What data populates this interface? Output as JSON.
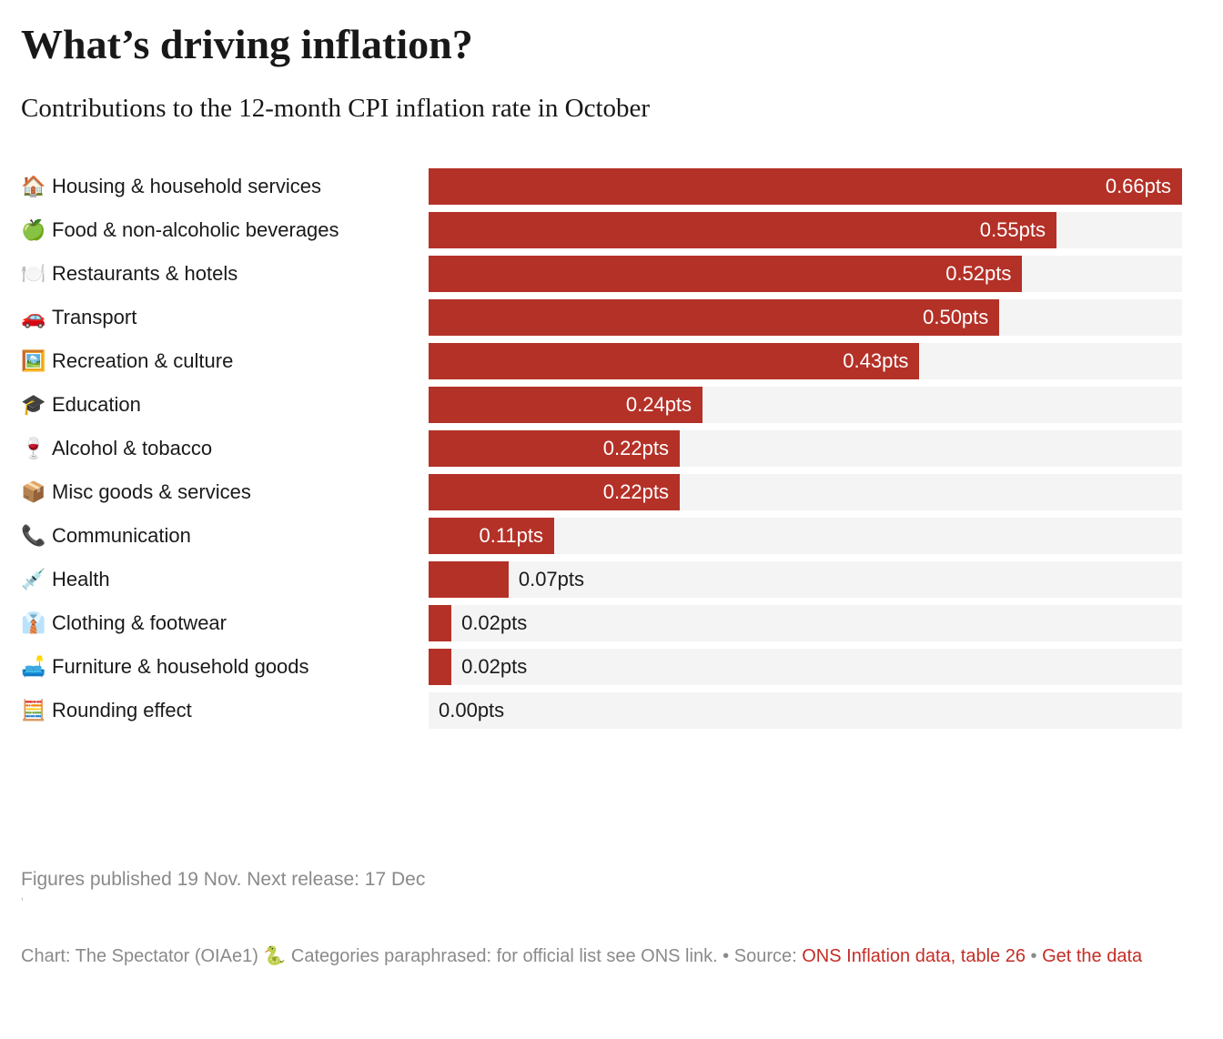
{
  "header": {
    "title": "What’s driving inflation?",
    "subtitle": "Contributions to the 12-month CPI inflation rate in October"
  },
  "chart_data": {
    "type": "bar",
    "orientation": "horizontal",
    "title": "What’s driving inflation?",
    "subtitle": "Contributions to the 12-month CPI inflation rate in October",
    "unit": "pts",
    "max_value": 0.66,
    "grid": false,
    "legend": "none",
    "bar_color": "#b43128",
    "track_color": "#f4f4f4",
    "value_label_inside_color": "#ffffff",
    "value_label_outside_color": "#1a1a1a",
    "categories": [
      "Housing & household services",
      "Food & non-alcoholic beverages",
      "Restaurants & hotels",
      "Transport",
      "Recreation & culture",
      "Education",
      "Alcohol & tobacco",
      "Misc goods & services",
      "Communication",
      "Health",
      "Clothing & footwear",
      "Furniture & household goods",
      "Rounding effect"
    ],
    "icons": [
      "🏠",
      "🍏",
      "🍽️",
      "🚗",
      "🖼️",
      "🎓",
      "🍷",
      "📦",
      "📞",
      "💉",
      "👔",
      "🛋️",
      "🧮"
    ],
    "icon_names": [
      "house-icon",
      "green-apple-icon",
      "fork-knife-plate-icon",
      "car-icon",
      "framed-picture-icon",
      "graduation-cap-icon",
      "wine-glass-icon",
      "package-icon",
      "telephone-receiver-icon",
      "syringe-icon",
      "necktie-icon",
      "couch-lamp-icon",
      "abacus-icon"
    ],
    "values": [
      0.66,
      0.55,
      0.52,
      0.5,
      0.43,
      0.24,
      0.22,
      0.22,
      0.11,
      0.07,
      0.02,
      0.02,
      0.0
    ],
    "value_labels": [
      "0.66pts",
      "0.55pts",
      "0.52pts",
      "0.50pts",
      "0.43pts",
      "0.24pts",
      "0.22pts",
      "0.22pts",
      "0.11pts",
      "0.07pts",
      "0.02pts",
      "0.02pts",
      "0.00pts"
    ]
  },
  "footer": {
    "published_note": "Figures published 19 Nov. Next release: 17 Dec",
    "footnote_mark": "’",
    "credit": {
      "prefix": "Chart: The Spectator (OIAe1) ",
      "snake_emoji": "🐍",
      "middle": " Categories paraphrased: for official list see ONS link. • Source: ",
      "source_link": "ONS Inflation data, table 26",
      "separator": " • ",
      "data_link": "Get the data"
    }
  }
}
